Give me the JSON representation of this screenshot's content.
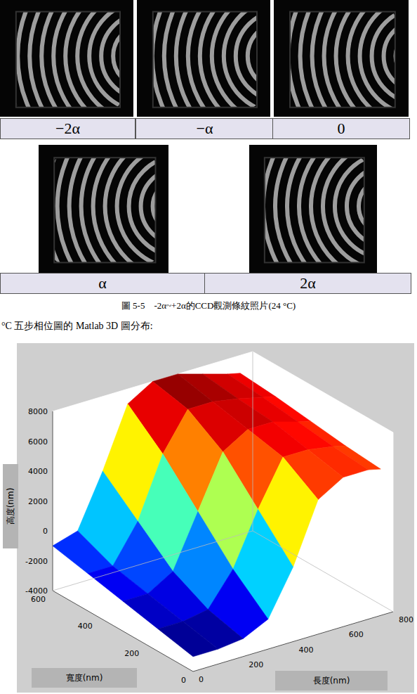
{
  "figure_5_5": {
    "panels": [
      "−2α",
      "−α",
      "0",
      "α",
      "2α"
    ],
    "caption": "圖 5-5　-2α~+2α的CCD觀測條紋照片(24 °C)"
  },
  "text": "°C 五步相位圖的 Matlab 3D 圖分布:",
  "chart_data": {
    "type": "surface3d",
    "x_label": "長度(nm)",
    "y_label": "寬度(nm)",
    "z_label": "高度(nm)",
    "xlim": [
      0,
      800
    ],
    "xticks": [
      0,
      200,
      400,
      600,
      800
    ],
    "ylim": [
      0,
      600
    ],
    "yticks": [
      0,
      200,
      400,
      600
    ],
    "zlim": [
      -4000,
      8000
    ],
    "zticks": [
      -4000,
      -2000,
      0,
      2000,
      4000,
      6000,
      8000
    ],
    "grid": true,
    "x": [
      0,
      100,
      200,
      300,
      400,
      500,
      600,
      700,
      750
    ],
    "y": [
      0,
      150,
      300,
      450,
      600
    ],
    "z": [
      [
        -3000,
        -3000,
        -2800,
        -2000,
        1000,
        5000,
        6000,
        6000,
        5800
      ],
      [
        -2500,
        -2500,
        -2200,
        0,
        3500,
        6500,
        6500,
        6200,
        6000
      ],
      [
        -2000,
        -2000,
        -1000,
        2500,
        6000,
        7000,
        7000,
        6500,
        6300
      ],
      [
        -1500,
        -1500,
        1000,
        5000,
        7500,
        7500,
        7200,
        6800,
        6600
      ],
      [
        -1000,
        -500,
        3000,
        7000,
        8000,
        8000,
        7500,
        7000,
        6800
      ]
    ]
  }
}
